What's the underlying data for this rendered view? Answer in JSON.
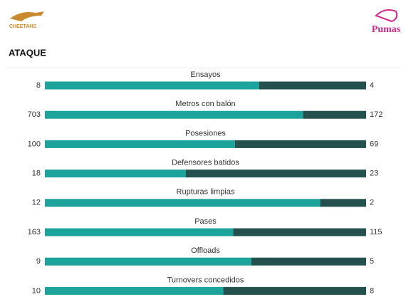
{
  "header": {
    "home_logo": "CHEETAHS",
    "away_logo": "Pumas",
    "section": "ATAQUE"
  },
  "stats": [
    {
      "label": "Ensayos",
      "home": 8,
      "away": 4
    },
    {
      "label": "Metros con balón",
      "home": 703,
      "away": 172
    },
    {
      "label": "Posesiones",
      "home": 100,
      "away": 69
    },
    {
      "label": "Defensores batidos",
      "home": 18,
      "away": 23
    },
    {
      "label": "Rupturas limpias",
      "home": 12,
      "away": 2
    },
    {
      "label": "Pases",
      "home": 163,
      "away": 115
    },
    {
      "label": "Offloads",
      "home": 9,
      "away": 5
    },
    {
      "label": "Turnovers concedidos",
      "home": 10,
      "away": 8
    }
  ],
  "colors": {
    "home": "#1ba39c",
    "away": "#24514d"
  }
}
